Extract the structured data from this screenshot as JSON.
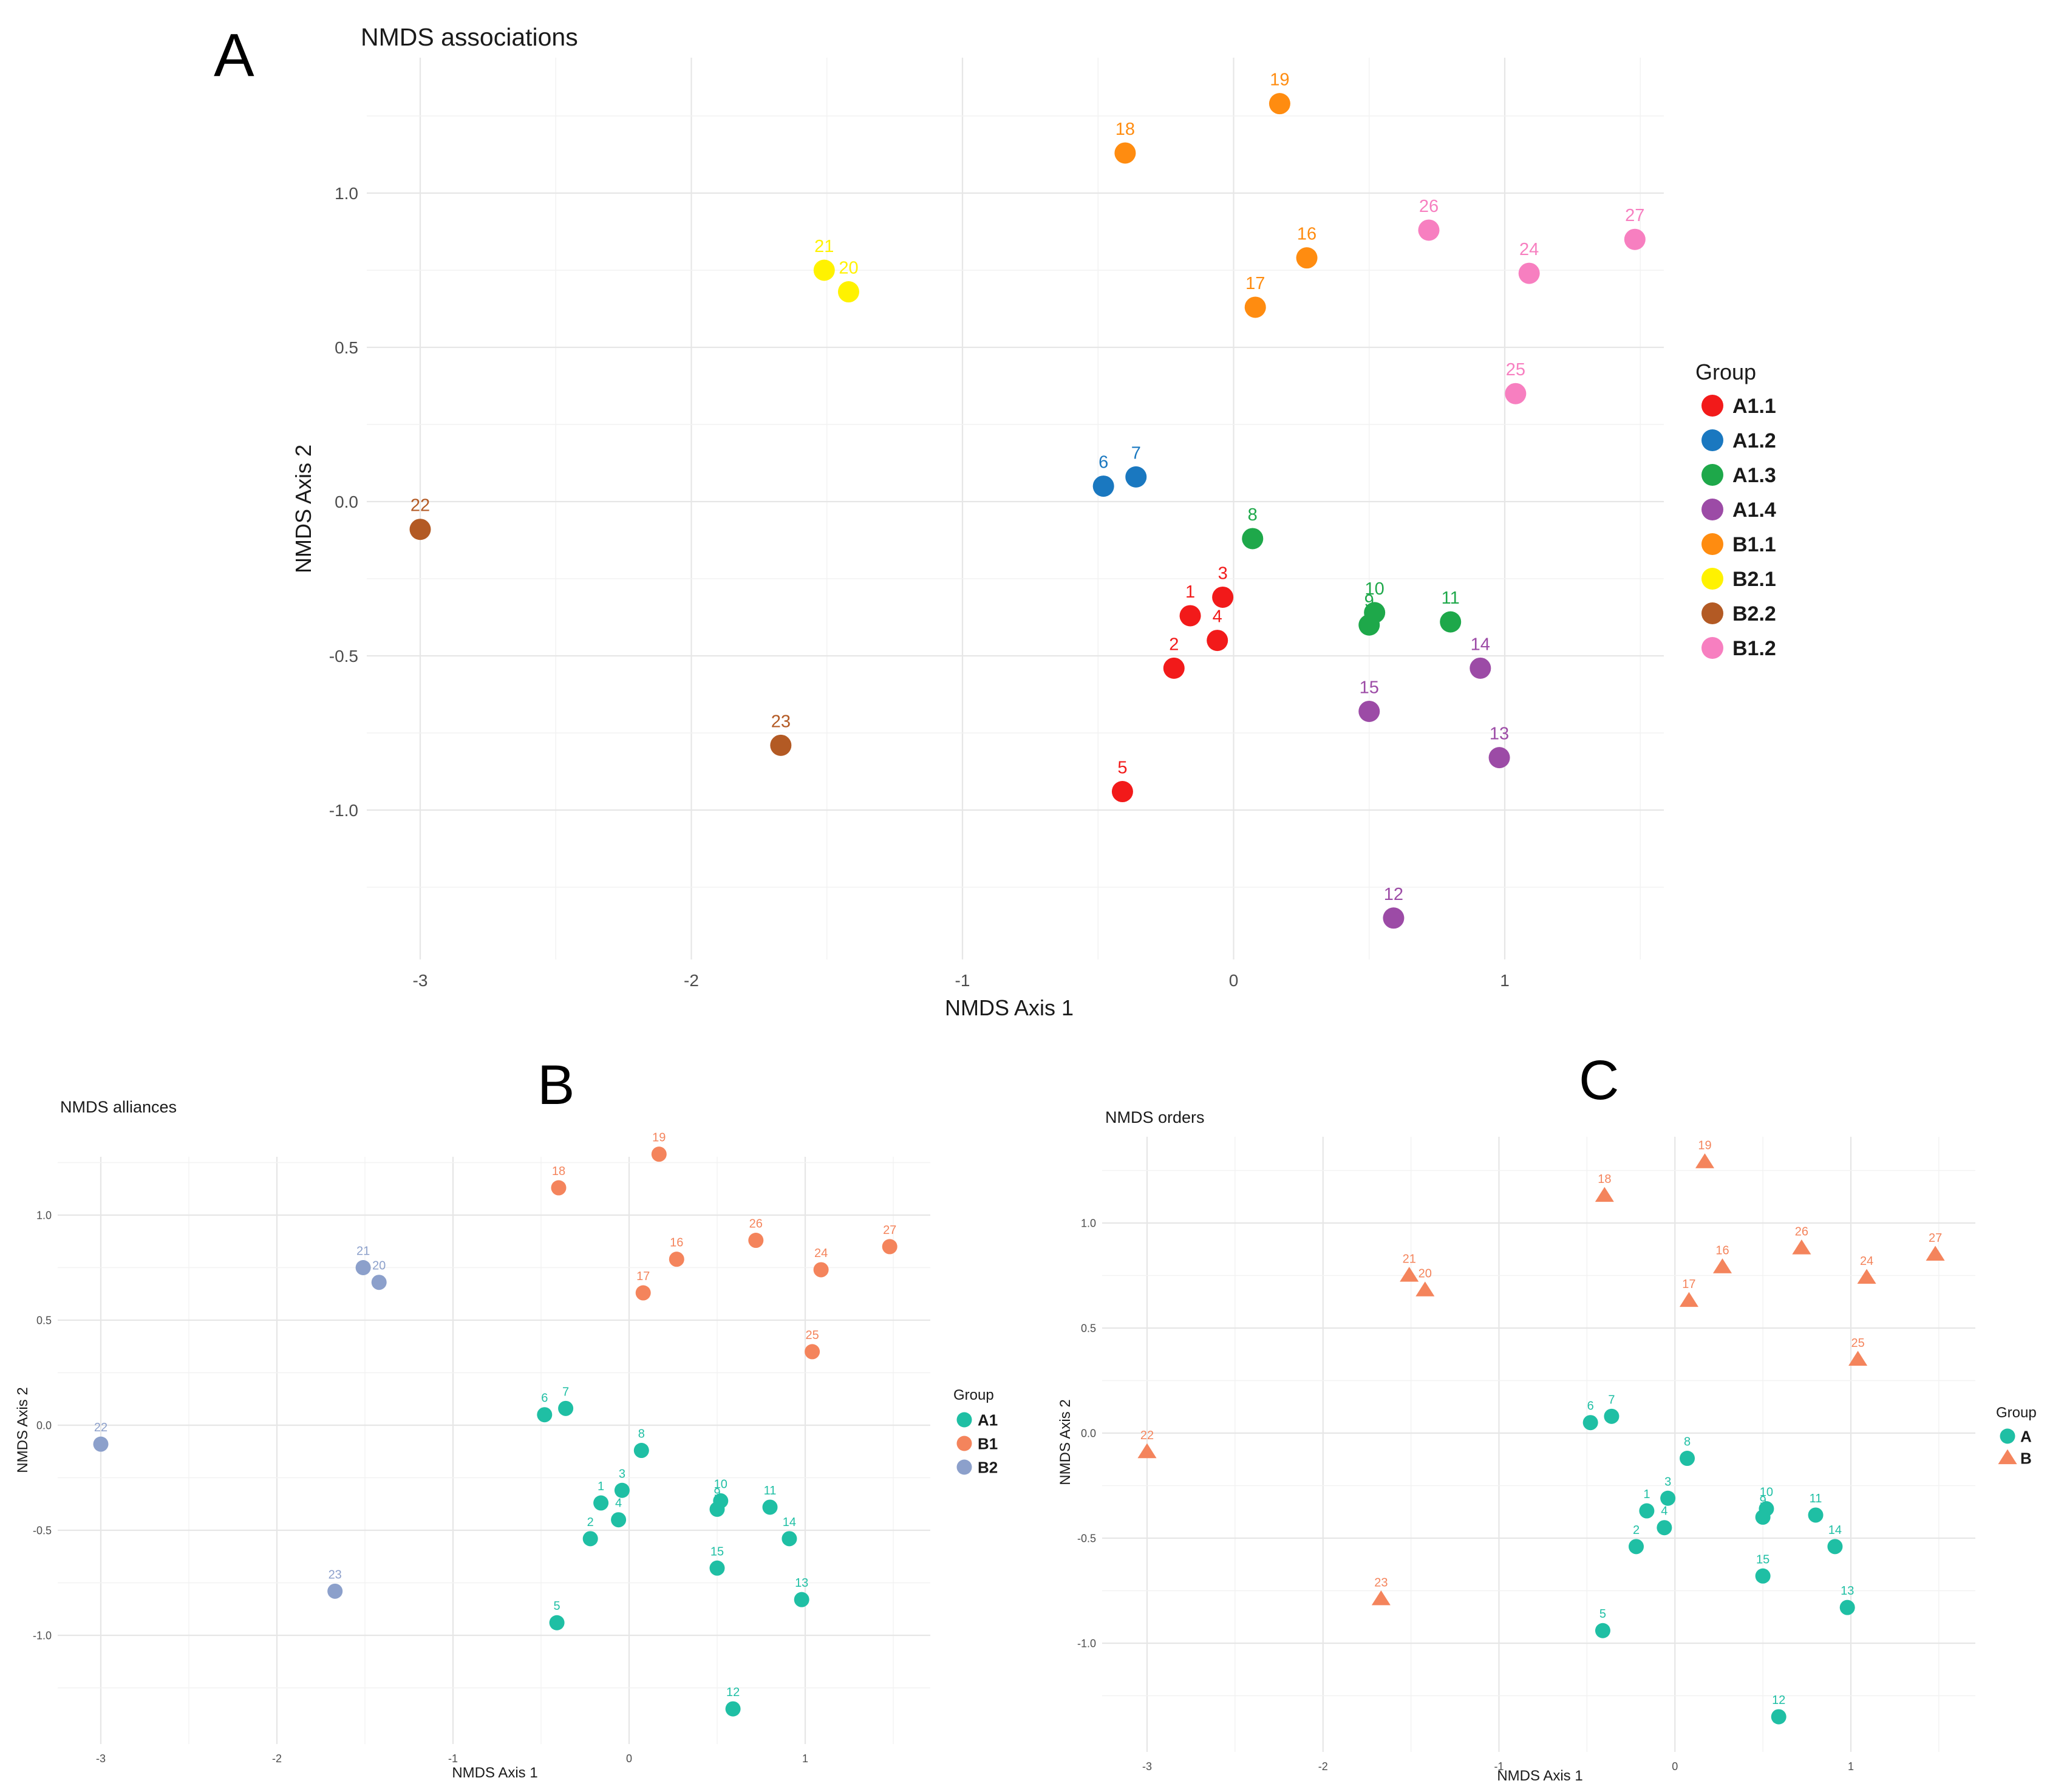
{
  "chart_data": [
    {
      "panel_letter": "A",
      "type": "scatter",
      "title": "NMDS associations",
      "xlabel": "NMDS Axis 1",
      "ylabel": "NMDS Axis 2",
      "xlim": [
        -3.18,
        1.72
      ],
      "ylim": [
        -1.49,
        1.36
      ],
      "xticks": [
        -3,
        -2,
        -1,
        0,
        1
      ],
      "yticks": [
        -1.0,
        -0.5,
        0.0,
        0.5,
        1.0
      ],
      "xtick_labels": [
        "-3",
        "-2",
        "-1",
        "0",
        "1"
      ],
      "ytick_labels": [
        "-1.0",
        "-0.5",
        "0.0",
        "0.5",
        "1.0"
      ],
      "grid": true,
      "legend_title": "Group",
      "legend_position": "right",
      "marker": "circle",
      "groups": [
        {
          "name": "A1.1",
          "color": "#F21A1A"
        },
        {
          "name": "A1.2",
          "color": "#1A78C0"
        },
        {
          "name": "A1.3",
          "color": "#1EA84A"
        },
        {
          "name": "A1.4",
          "color": "#9C4BA6"
        },
        {
          "name": "B1.1",
          "color": "#FF8C10"
        },
        {
          "name": "B2.1",
          "color": "#FFF200"
        },
        {
          "name": "B2.2",
          "color": "#B35A24"
        },
        {
          "name": "B1.2",
          "color": "#F77FC0"
        }
      ],
      "points": [
        {
          "label": "1",
          "x": -0.16,
          "y": -0.37,
          "group": "A1.1"
        },
        {
          "label": "2",
          "x": -0.22,
          "y": -0.54,
          "group": "A1.1"
        },
        {
          "label": "3",
          "x": -0.04,
          "y": -0.31,
          "group": "A1.1"
        },
        {
          "label": "4",
          "x": -0.06,
          "y": -0.45,
          "group": "A1.1"
        },
        {
          "label": "5",
          "x": -0.41,
          "y": -0.94,
          "group": "A1.1"
        },
        {
          "label": "6",
          "x": -0.48,
          "y": 0.05,
          "group": "A1.2"
        },
        {
          "label": "7",
          "x": -0.36,
          "y": 0.08,
          "group": "A1.2"
        },
        {
          "label": "8",
          "x": 0.07,
          "y": -0.12,
          "group": "A1.3"
        },
        {
          "label": "9",
          "x": 0.5,
          "y": -0.4,
          "group": "A1.3"
        },
        {
          "label": "10",
          "x": 0.52,
          "y": -0.36,
          "group": "A1.3"
        },
        {
          "label": "11",
          "x": 0.8,
          "y": -0.39,
          "group": "A1.3"
        },
        {
          "label": "12",
          "x": 0.59,
          "y": -1.35,
          "group": "A1.4"
        },
        {
          "label": "13",
          "x": 0.98,
          "y": -0.83,
          "group": "A1.4"
        },
        {
          "label": "14",
          "x": 0.91,
          "y": -0.54,
          "group": "A1.4"
        },
        {
          "label": "15",
          "x": 0.5,
          "y": -0.68,
          "group": "A1.4"
        },
        {
          "label": "16",
          "x": 0.27,
          "y": 0.79,
          "group": "B1.1"
        },
        {
          "label": "17",
          "x": 0.08,
          "y": 0.63,
          "group": "B1.1"
        },
        {
          "label": "18",
          "x": -0.4,
          "y": 1.13,
          "group": "B1.1"
        },
        {
          "label": "19",
          "x": 0.17,
          "y": 1.29,
          "group": "B1.1"
        },
        {
          "label": "20",
          "x": -1.42,
          "y": 0.68,
          "group": "B2.1"
        },
        {
          "label": "21",
          "x": -1.51,
          "y": 0.75,
          "group": "B2.1"
        },
        {
          "label": "22",
          "x": -3.0,
          "y": -0.09,
          "group": "B2.2"
        },
        {
          "label": "23",
          "x": -1.67,
          "y": -0.79,
          "group": "B2.2"
        },
        {
          "label": "24",
          "x": 1.09,
          "y": 0.74,
          "group": "B1.2"
        },
        {
          "label": "25",
          "x": 1.04,
          "y": 0.35,
          "group": "B1.2"
        },
        {
          "label": "26",
          "x": 0.72,
          "y": 0.88,
          "group": "B1.2"
        },
        {
          "label": "27",
          "x": 1.48,
          "y": 0.85,
          "group": "B1.2"
        }
      ]
    },
    {
      "panel_letter": "B",
      "type": "scatter",
      "title": "NMDS alliances",
      "xlabel": "NMDS Axis 1",
      "ylabel": "NMDS Axis 2",
      "xlim": [
        -3.18,
        1.72
      ],
      "ylim": [
        -1.49,
        1.36
      ],
      "xticks": [
        -3,
        -2,
        -1,
        0,
        1
      ],
      "yticks": [
        -1.0,
        -0.5,
        0.0,
        0.5,
        1.0
      ],
      "xtick_labels": [
        "-3",
        "-2",
        "-1",
        "0",
        "1"
      ],
      "ytick_labels": [
        "-1.0",
        "-0.5",
        "0.0",
        "0.5",
        "1.0"
      ],
      "grid": true,
      "legend_title": "Group",
      "legend_position": "right",
      "marker": "circle",
      "groups": [
        {
          "name": "A1",
          "color": "#1FBFA4"
        },
        {
          "name": "B1",
          "color": "#F4845C"
        },
        {
          "name": "B2",
          "color": "#8CA0CB"
        }
      ],
      "points": [
        {
          "label": "1",
          "x": -0.16,
          "y": -0.37,
          "group": "A1"
        },
        {
          "label": "2",
          "x": -0.22,
          "y": -0.54,
          "group": "A1"
        },
        {
          "label": "3",
          "x": -0.04,
          "y": -0.31,
          "group": "A1"
        },
        {
          "label": "4",
          "x": -0.06,
          "y": -0.45,
          "group": "A1"
        },
        {
          "label": "5",
          "x": -0.41,
          "y": -0.94,
          "group": "A1"
        },
        {
          "label": "6",
          "x": -0.48,
          "y": 0.05,
          "group": "A1"
        },
        {
          "label": "7",
          "x": -0.36,
          "y": 0.08,
          "group": "A1"
        },
        {
          "label": "8",
          "x": 0.07,
          "y": -0.12,
          "group": "A1"
        },
        {
          "label": "9",
          "x": 0.5,
          "y": -0.4,
          "group": "A1"
        },
        {
          "label": "10",
          "x": 0.52,
          "y": -0.36,
          "group": "A1"
        },
        {
          "label": "11",
          "x": 0.8,
          "y": -0.39,
          "group": "A1"
        },
        {
          "label": "12",
          "x": 0.59,
          "y": -1.35,
          "group": "A1"
        },
        {
          "label": "13",
          "x": 0.98,
          "y": -0.83,
          "group": "A1"
        },
        {
          "label": "14",
          "x": 0.91,
          "y": -0.54,
          "group": "A1"
        },
        {
          "label": "15",
          "x": 0.5,
          "y": -0.68,
          "group": "A1"
        },
        {
          "label": "16",
          "x": 0.27,
          "y": 0.79,
          "group": "B1"
        },
        {
          "label": "17",
          "x": 0.08,
          "y": 0.63,
          "group": "B1"
        },
        {
          "label": "18",
          "x": -0.4,
          "y": 1.13,
          "group": "B1"
        },
        {
          "label": "19",
          "x": 0.17,
          "y": 1.29,
          "group": "B1"
        },
        {
          "label": "20",
          "x": -1.42,
          "y": 0.68,
          "group": "B2"
        },
        {
          "label": "21",
          "x": -1.51,
          "y": 0.75,
          "group": "B2"
        },
        {
          "label": "22",
          "x": -3.0,
          "y": -0.09,
          "group": "B2"
        },
        {
          "label": "23",
          "x": -1.67,
          "y": -0.79,
          "group": "B2"
        },
        {
          "label": "24",
          "x": 1.09,
          "y": 0.74,
          "group": "B1"
        },
        {
          "label": "25",
          "x": 1.04,
          "y": 0.35,
          "group": "B1"
        },
        {
          "label": "26",
          "x": 0.72,
          "y": 0.88,
          "group": "B1"
        },
        {
          "label": "27",
          "x": 1.48,
          "y": 0.85,
          "group": "B1"
        }
      ]
    },
    {
      "panel_letter": "C",
      "type": "scatter",
      "title": "NMDS orders",
      "xlabel": "NMDS Axis 1",
      "ylabel": "NMDS Axis 2",
      "xlim": [
        -3.18,
        1.72
      ],
      "ylim": [
        -1.49,
        1.36
      ],
      "xticks": [
        -3,
        -2,
        -1,
        0,
        1
      ],
      "yticks": [
        -1.0,
        -0.5,
        0.0,
        0.5,
        1.0
      ],
      "xtick_labels": [
        "-3",
        "-2",
        "-1",
        "0",
        "1"
      ],
      "ytick_labels": [
        "-1.0",
        "-0.5",
        "0.0",
        "0.5",
        "1.0"
      ],
      "grid": true,
      "legend_title": "Group",
      "legend_position": "right",
      "groups": [
        {
          "name": "A",
          "color": "#1FBFA4",
          "marker": "circle"
        },
        {
          "name": "B",
          "color": "#F4845C",
          "marker": "triangle"
        }
      ],
      "points": [
        {
          "label": "1",
          "x": -0.16,
          "y": -0.37,
          "group": "A"
        },
        {
          "label": "2",
          "x": -0.22,
          "y": -0.54,
          "group": "A"
        },
        {
          "label": "3",
          "x": -0.04,
          "y": -0.31,
          "group": "A"
        },
        {
          "label": "4",
          "x": -0.06,
          "y": -0.45,
          "group": "A"
        },
        {
          "label": "5",
          "x": -0.41,
          "y": -0.94,
          "group": "A"
        },
        {
          "label": "6",
          "x": -0.48,
          "y": 0.05,
          "group": "A"
        },
        {
          "label": "7",
          "x": -0.36,
          "y": 0.08,
          "group": "A"
        },
        {
          "label": "8",
          "x": 0.07,
          "y": -0.12,
          "group": "A"
        },
        {
          "label": "9",
          "x": 0.5,
          "y": -0.4,
          "group": "A"
        },
        {
          "label": "10",
          "x": 0.52,
          "y": -0.36,
          "group": "A"
        },
        {
          "label": "11",
          "x": 0.8,
          "y": -0.39,
          "group": "A"
        },
        {
          "label": "12",
          "x": 0.59,
          "y": -1.35,
          "group": "A"
        },
        {
          "label": "13",
          "x": 0.98,
          "y": -0.83,
          "group": "A"
        },
        {
          "label": "14",
          "x": 0.91,
          "y": -0.54,
          "group": "A"
        },
        {
          "label": "15",
          "x": 0.5,
          "y": -0.68,
          "group": "A"
        },
        {
          "label": "16",
          "x": 0.27,
          "y": 0.79,
          "group": "B"
        },
        {
          "label": "17",
          "x": 0.08,
          "y": 0.63,
          "group": "B"
        },
        {
          "label": "18",
          "x": -0.4,
          "y": 1.13,
          "group": "B"
        },
        {
          "label": "19",
          "x": 0.17,
          "y": 1.29,
          "group": "B"
        },
        {
          "label": "20",
          "x": -1.42,
          "y": 0.68,
          "group": "B"
        },
        {
          "label": "21",
          "x": -1.51,
          "y": 0.75,
          "group": "B"
        },
        {
          "label": "22",
          "x": -3.0,
          "y": -0.09,
          "group": "B"
        },
        {
          "label": "23",
          "x": -1.67,
          "y": -0.79,
          "group": "B"
        },
        {
          "label": "24",
          "x": 1.09,
          "y": 0.74,
          "group": "B"
        },
        {
          "label": "25",
          "x": 1.04,
          "y": 0.35,
          "group": "B"
        },
        {
          "label": "26",
          "x": 0.72,
          "y": 0.88,
          "group": "B"
        },
        {
          "label": "27",
          "x": 1.48,
          "y": 0.85,
          "group": "B"
        }
      ]
    }
  ]
}
